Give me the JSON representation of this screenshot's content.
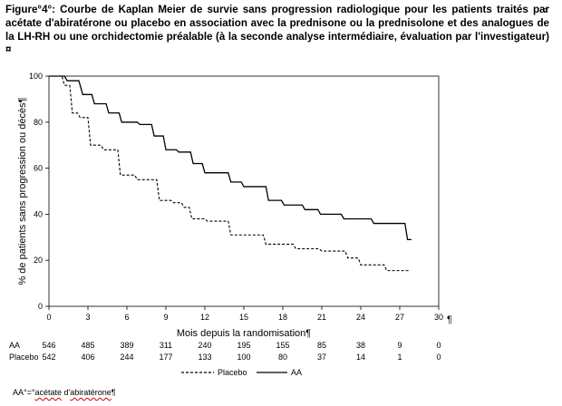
{
  "caption": {
    "line1": "Figure°4°: Courbe de Kaplan Meier de survie sans progression radiologique pour les patients traités par acétate d'abiratérone ou placebo en association avec la prednisone ou la prednisolone et des analogues de la LH-RH ou une orchidectomie préalable (à la seconde analyse intermédiaire, évaluation par l'investigateur)¤",
    "pilcrow_mark": "¤"
  },
  "chart_data": {
    "type": "line",
    "step": true,
    "title": "",
    "xlabel": "Mois depuis la randomisation¶",
    "ylabel": "% de patients sans progression ou décès¶",
    "xlim": [
      0,
      30
    ],
    "ylim": [
      0,
      100
    ],
    "x_ticks": [
      "0",
      "3",
      "6",
      "9",
      "12",
      "15",
      "18",
      "21",
      "24",
      "27",
      "30"
    ],
    "y_ticks": [
      "0",
      "20",
      "40",
      "60",
      "80",
      "100"
    ],
    "x_tick_values": [
      0,
      3,
      6,
      9,
      12,
      15,
      18,
      21,
      24,
      27,
      30
    ],
    "y_tick_values": [
      0,
      20,
      40,
      60,
      80,
      100
    ],
    "x_axis_end_mark": "¶",
    "grid": false,
    "legend_position": "bottom",
    "series": [
      {
        "name": "AA",
        "color": "#000000",
        "dash": "solid",
        "points": [
          [
            0,
            100
          ],
          [
            1.2,
            100
          ],
          [
            1.4,
            98
          ],
          [
            2.3,
            98
          ],
          [
            2.6,
            92
          ],
          [
            3.3,
            92
          ],
          [
            3.5,
            88
          ],
          [
            4.4,
            88
          ],
          [
            4.6,
            84
          ],
          [
            5.4,
            84
          ],
          [
            5.6,
            80
          ],
          [
            6.8,
            80
          ],
          [
            7.0,
            79
          ],
          [
            7.9,
            79
          ],
          [
            8.1,
            74
          ],
          [
            8.8,
            74
          ],
          [
            9.0,
            68
          ],
          [
            9.8,
            68
          ],
          [
            10.0,
            67
          ],
          [
            10.9,
            67
          ],
          [
            11.1,
            62
          ],
          [
            11.8,
            62
          ],
          [
            12.0,
            58
          ],
          [
            13.8,
            58
          ],
          [
            14.0,
            54
          ],
          [
            14.8,
            54
          ],
          [
            15.0,
            52
          ],
          [
            16.7,
            52
          ],
          [
            16.9,
            46
          ],
          [
            17.9,
            46
          ],
          [
            18.1,
            44
          ],
          [
            19.5,
            44
          ],
          [
            19.7,
            42
          ],
          [
            20.7,
            42
          ],
          [
            20.9,
            40
          ],
          [
            22.5,
            40
          ],
          [
            22.7,
            38
          ],
          [
            24.8,
            38
          ],
          [
            25.0,
            36
          ],
          [
            27.4,
            36
          ],
          [
            27.6,
            29
          ],
          [
            27.9,
            29
          ]
        ]
      },
      {
        "name": "Placebo",
        "color": "#000000",
        "dash": "dashed",
        "points": [
          [
            0,
            100
          ],
          [
            1.0,
            100
          ],
          [
            1.2,
            96
          ],
          [
            1.6,
            96
          ],
          [
            1.8,
            84
          ],
          [
            2.2,
            84
          ],
          [
            2.4,
            82
          ],
          [
            3.0,
            82
          ],
          [
            3.2,
            70
          ],
          [
            4.0,
            70
          ],
          [
            4.2,
            68
          ],
          [
            5.3,
            68
          ],
          [
            5.5,
            57
          ],
          [
            6.6,
            57
          ],
          [
            6.8,
            55
          ],
          [
            8.3,
            55
          ],
          [
            8.5,
            46
          ],
          [
            9.4,
            46
          ],
          [
            9.6,
            45
          ],
          [
            10.2,
            45
          ],
          [
            10.4,
            43
          ],
          [
            10.8,
            43
          ],
          [
            11.0,
            38
          ],
          [
            12.0,
            38
          ],
          [
            12.2,
            37
          ],
          [
            13.8,
            37
          ],
          [
            14.0,
            31
          ],
          [
            16.5,
            31
          ],
          [
            16.7,
            27
          ],
          [
            18.8,
            27
          ],
          [
            19.0,
            25
          ],
          [
            20.8,
            25
          ],
          [
            21.0,
            24
          ],
          [
            22.8,
            24
          ],
          [
            23.0,
            21
          ],
          [
            23.8,
            21
          ],
          [
            24.0,
            18
          ],
          [
            25.8,
            18
          ],
          [
            26.0,
            15.5
          ],
          [
            27.8,
            15.5
          ]
        ]
      }
    ],
    "at_risk": {
      "times": [
        0,
        3,
        6,
        9,
        12,
        15,
        18,
        21,
        24,
        27,
        30
      ],
      "rows": [
        {
          "label": "AA",
          "values": [
            "546",
            "485",
            "389",
            "311",
            "240",
            "195",
            "155",
            "85",
            "38",
            "9",
            "0"
          ]
        },
        {
          "label": "Placebo",
          "values": [
            "542",
            "406",
            "244",
            "177",
            "133",
            "100",
            "80",
            "37",
            "14",
            "1",
            "0"
          ]
        }
      ]
    }
  },
  "legend": {
    "placebo_label": "Placebo",
    "aa_label": "AA"
  },
  "footnote": {
    "prefix": "AA°=°",
    "word1": "acétate",
    "middle": " d'",
    "word2": "abiratérone",
    "suffix": "¶"
  }
}
